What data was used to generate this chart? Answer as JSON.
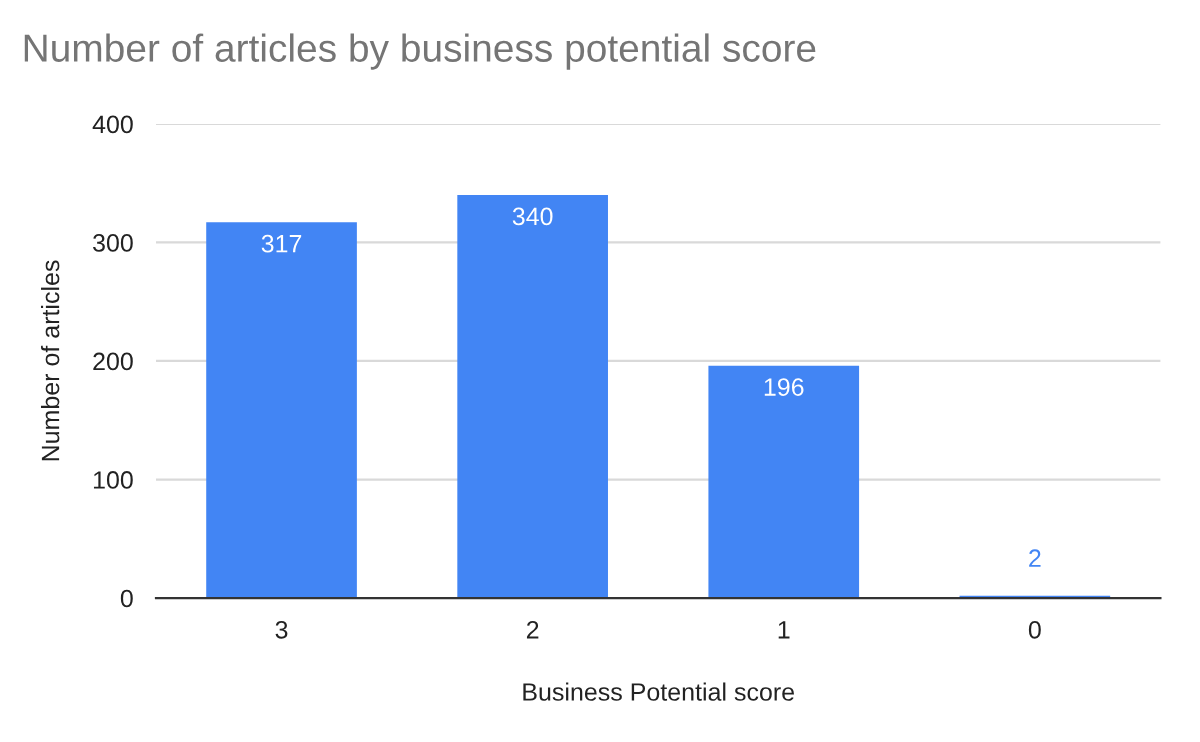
{
  "chart_data": {
    "type": "bar",
    "title": "Number of articles by business potential score",
    "xlabel": "Business Potential score",
    "ylabel": "Number of articles",
    "categories": [
      "3",
      "2",
      "1",
      "0"
    ],
    "values": [
      317,
      340,
      196,
      2
    ],
    "color": "#4285f4",
    "ylim": [
      0,
      400
    ],
    "yticks": [
      0,
      100,
      200,
      300,
      400
    ],
    "grid": "y",
    "data_labels": true
  }
}
